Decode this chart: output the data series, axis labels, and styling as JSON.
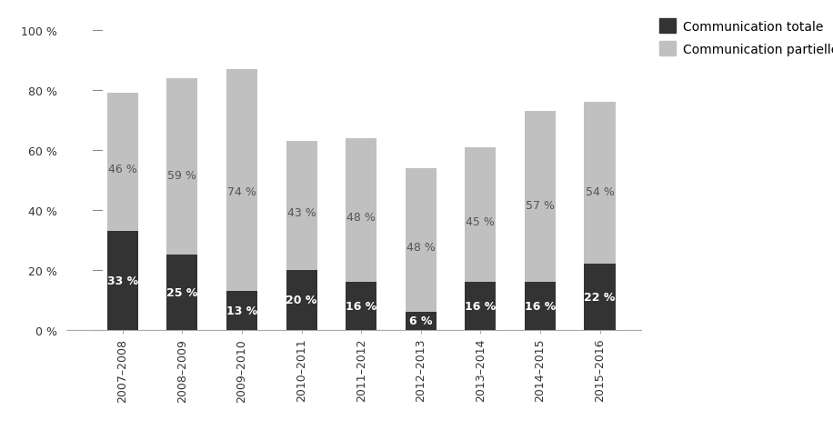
{
  "categories": [
    "2007–2008",
    "2008–2009",
    "2009–2010",
    "2010–2011",
    "2011–2012",
    "2012–2013",
    "2013–2014",
    "2014–2015",
    "2015–2016"
  ],
  "totale": [
    33,
    25,
    13,
    20,
    16,
    6,
    16,
    16,
    22
  ],
  "partielle": [
    46,
    59,
    74,
    43,
    48,
    48,
    45,
    57,
    54
  ],
  "color_totale": "#333333",
  "color_partielle": "#c0c0c0",
  "ylabel_ticks": [
    "0 %",
    "20 %",
    "40 %",
    "60 %",
    "80 %",
    "100 %"
  ],
  "yticks": [
    0,
    20,
    40,
    60,
    80,
    100
  ],
  "ylim": [
    0,
    106
  ],
  "legend_totale": "Communication totale",
  "legend_partielle": "Communication partielle",
  "bar_width": 0.52,
  "label_fontsize": 9,
  "tick_fontsize": 9,
  "legend_fontsize": 10,
  "totale_label_color": "white",
  "partielle_label_color": "#555555"
}
